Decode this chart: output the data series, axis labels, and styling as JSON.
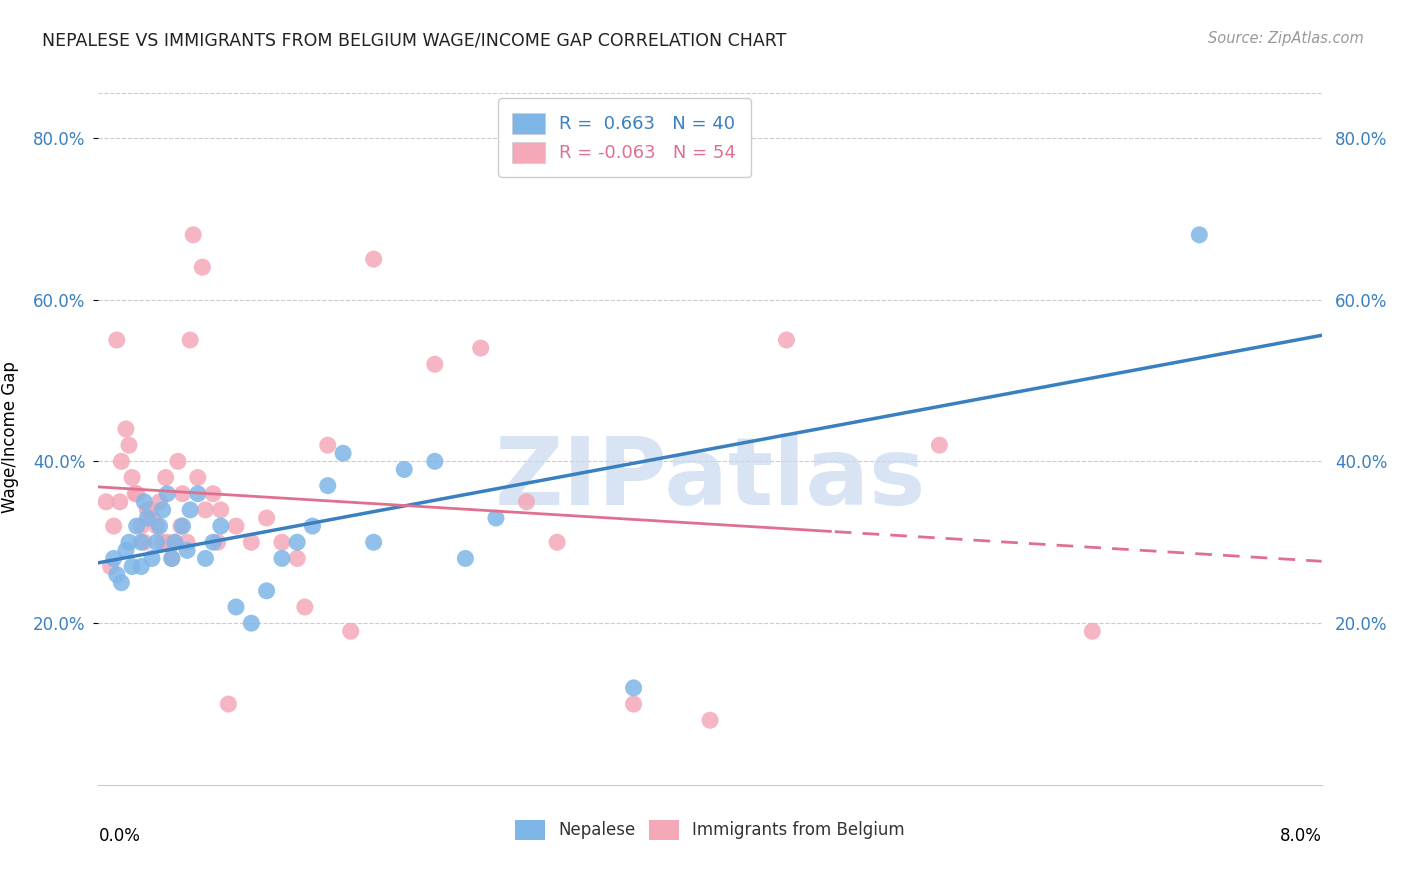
{
  "title": "NEPALESE VS IMMIGRANTS FROM BELGIUM WAGE/INCOME GAP CORRELATION CHART",
  "source": "Source: ZipAtlas.com",
  "ylabel": "Wage/Income Gap",
  "xmin": 0.0,
  "xmax": 8.0,
  "ymin": 0.0,
  "ymax": 86.0,
  "yticks": [
    20.0,
    40.0,
    60.0,
    80.0
  ],
  "nepalese_R": 0.663,
  "nepalese_N": 40,
  "belgium_R": -0.063,
  "belgium_N": 54,
  "blue_color": "#7EB6E8",
  "pink_color": "#F4A8B8",
  "blue_line_color": "#3A80C0",
  "pink_line_color": "#E07090",
  "watermark": "ZIPatlas",
  "watermark_color": "#C8D8F0",
  "nepalese_x": [
    0.1,
    0.15,
    0.2,
    0.22,
    0.25,
    0.28,
    0.3,
    0.32,
    0.35,
    0.38,
    0.4,
    0.42,
    0.45,
    0.48,
    0.5,
    0.55,
    0.6,
    0.65,
    0.7,
    0.75,
    0.8,
    0.9,
    1.0,
    1.1,
    1.2,
    1.3,
    1.4,
    1.5,
    1.6,
    1.8,
    2.0,
    2.2,
    2.4,
    2.6,
    0.12,
    0.18,
    0.28,
    0.58,
    3.5,
    7.2
  ],
  "nepalese_y": [
    28,
    25,
    30,
    27,
    32,
    27,
    35,
    33,
    28,
    30,
    32,
    34,
    36,
    28,
    30,
    32,
    34,
    36,
    28,
    30,
    32,
    22,
    20,
    24,
    28,
    30,
    32,
    37,
    41,
    30,
    39,
    40,
    28,
    33,
    26,
    29,
    30,
    29,
    12,
    68
  ],
  "belgium_x": [
    0.05,
    0.1,
    0.12,
    0.15,
    0.18,
    0.2,
    0.22,
    0.25,
    0.28,
    0.3,
    0.32,
    0.35,
    0.38,
    0.4,
    0.42,
    0.45,
    0.48,
    0.5,
    0.52,
    0.55,
    0.58,
    0.6,
    0.65,
    0.7,
    0.75,
    0.8,
    0.9,
    1.0,
    1.1,
    1.2,
    1.3,
    1.5,
    1.8,
    2.2,
    2.5,
    3.0,
    4.5,
    5.5,
    0.08,
    0.14,
    0.24,
    0.34,
    0.44,
    0.54,
    0.62,
    0.68,
    0.78,
    0.85,
    1.35,
    1.65,
    2.8,
    3.5,
    4.0,
    6.5
  ],
  "belgium_y": [
    35,
    32,
    55,
    40,
    44,
    42,
    38,
    36,
    32,
    30,
    34,
    33,
    32,
    35,
    30,
    30,
    28,
    30,
    40,
    36,
    30,
    55,
    38,
    34,
    36,
    34,
    32,
    30,
    33,
    30,
    28,
    42,
    65,
    52,
    54,
    30,
    55,
    42,
    27,
    35,
    36,
    34,
    38,
    32,
    68,
    64,
    30,
    10,
    22,
    19,
    35,
    10,
    8,
    19
  ],
  "bg_color": "#FFFFFF",
  "grid_color": "#CCCCCC",
  "tick_color": "#3A80C0"
}
